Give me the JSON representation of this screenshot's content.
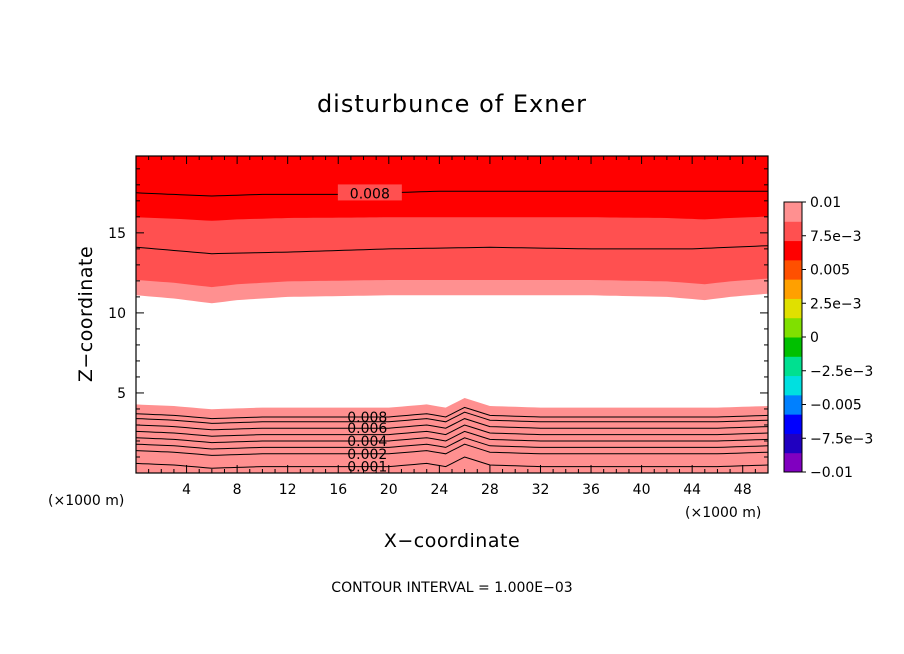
{
  "chart_data": {
    "type": "heatmap",
    "title": "disturbunce of Exner",
    "xlabel": "X−coordinate",
    "ylabel": "Z−coordinate",
    "x_unit": "(×1000 m)",
    "z_unit": "(×1000 m)",
    "xlim": [
      0,
      50
    ],
    "ylim": [
      0,
      19.8
    ],
    "x_ticks": [
      4,
      8,
      12,
      16,
      20,
      24,
      28,
      32,
      36,
      40,
      44,
      48
    ],
    "x_tick_labels": [
      "4",
      "8",
      "12",
      "16",
      "20",
      "24",
      "28",
      "32",
      "36",
      "40",
      "44",
      "48"
    ],
    "y_ticks": [
      5,
      10,
      15
    ],
    "y_tick_labels": [
      "5",
      "10",
      "15"
    ],
    "colorbar": {
      "range": [
        -0.01,
        0.01
      ],
      "labels": [
        {
          "value": 0.01,
          "text": "0.01"
        },
        {
          "value": 0.0075,
          "text": "7.5e−3"
        },
        {
          "value": 0.005,
          "text": "0.005"
        },
        {
          "value": 0.0025,
          "text": "2.5e−3"
        },
        {
          "value": 0,
          "text": "0"
        },
        {
          "value": -0.0025,
          "text": "−2.5e−3"
        },
        {
          "value": -0.005,
          "text": "−0.005"
        },
        {
          "value": -0.0075,
          "text": "−7.5e−3"
        },
        {
          "value": -0.01,
          "text": "−0.01"
        }
      ],
      "colors": [
        "#8000c0",
        "#2000c0",
        "#0000ff",
        "#0080ff",
        "#00e0e0",
        "#00e090",
        "#00c000",
        "#80e000",
        "#e0e000",
        "#ffa000",
        "#ff5000",
        "#ff0000",
        "#ff5050",
        "#ff9090"
      ]
    },
    "upper_layer": {
      "boundary_z": [
        [
          0,
          11.1
        ],
        [
          3,
          10.9
        ],
        [
          6,
          10.6
        ],
        [
          8,
          10.8
        ],
        [
          12,
          11.0
        ],
        [
          20,
          11.1
        ],
        [
          28,
          11.1
        ],
        [
          36,
          11.1
        ],
        [
          42,
          11.0
        ],
        [
          45,
          10.8
        ],
        [
          47,
          11.0
        ],
        [
          50,
          11.2
        ]
      ],
      "contours": [
        {
          "level": 0.008,
          "label": "0.008",
          "label_x": 18.5,
          "z": [
            [
              0,
              17.5
            ],
            [
              6,
              17.3
            ],
            [
              10,
              17.4
            ],
            [
              16,
              17.4
            ],
            [
              24,
              17.6
            ],
            [
              32,
              17.6
            ],
            [
              40,
              17.6
            ],
            [
              50,
              17.6
            ]
          ]
        },
        {
          "level": 0.006,
          "label": "",
          "z": [
            [
              0,
              14.1
            ],
            [
              6,
              13.7
            ],
            [
              12,
              13.8
            ],
            [
              20,
              14.0
            ],
            [
              28,
              14.1
            ],
            [
              36,
              14.0
            ],
            [
              44,
              14.0
            ],
            [
              50,
              14.2
            ]
          ]
        }
      ]
    },
    "lower_layer": {
      "top_z": [
        [
          0,
          4.6
        ],
        [
          3,
          4.5
        ],
        [
          6,
          4.3
        ],
        [
          10,
          4.4
        ],
        [
          16,
          4.4
        ],
        [
          20,
          4.4
        ],
        [
          23,
          4.6
        ],
        [
          24.5,
          4.4
        ],
        [
          26,
          5.0
        ],
        [
          28,
          4.5
        ],
        [
          32,
          4.4
        ],
        [
          40,
          4.4
        ],
        [
          46,
          4.4
        ],
        [
          50,
          4.5
        ]
      ],
      "contours": [
        {
          "level": 0.008,
          "label": "0.008",
          "z": 3.6
        },
        {
          "level": 0.007,
          "label": "",
          "z": 3.3
        },
        {
          "level": 0.006,
          "label": "0.006",
          "z": 2.9
        },
        {
          "level": 0.005,
          "label": "",
          "z": 2.5
        },
        {
          "level": 0.004,
          "label": "0.004",
          "z": 2.1
        },
        {
          "level": 0.003,
          "label": "",
          "z": 1.7
        },
        {
          "level": 0.002,
          "label": "0.002",
          "z": 1.3
        },
        {
          "level": 0.001,
          "label": "0.001",
          "z": 0.5
        }
      ]
    },
    "footnote": "CONTOUR INTERVAL = 1.000E−03"
  }
}
